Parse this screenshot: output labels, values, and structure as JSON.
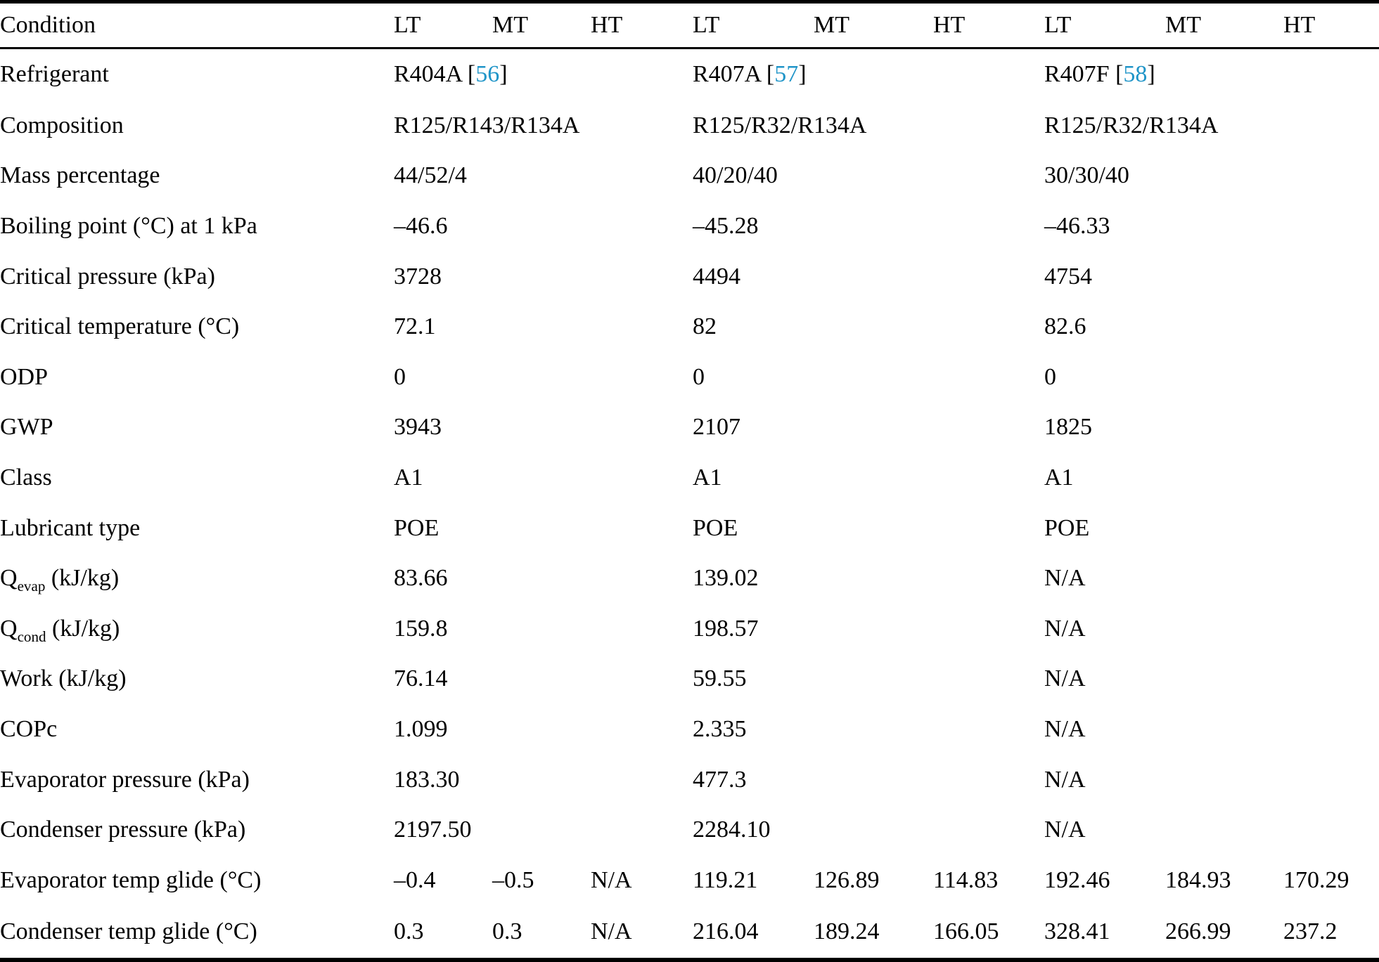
{
  "table": {
    "link_color": "#2095c8",
    "header": {
      "condition_label": "Condition",
      "groups": [
        [
          "LT",
          "MT",
          "HT"
        ],
        [
          "LT",
          "MT",
          "HT"
        ],
        [
          "LT",
          "MT",
          "HT"
        ]
      ]
    },
    "rows": [
      {
        "name": "refrigerant",
        "label": [
          {
            "text": "Refrigerant"
          }
        ],
        "type": "grouped",
        "values": [
          {
            "text": "R404A ",
            "ref": "56"
          },
          {
            "text": "R407A ",
            "ref": "57"
          },
          {
            "text": "R407F ",
            "ref": "58"
          }
        ]
      },
      {
        "name": "composition",
        "label": [
          {
            "text": "Composition"
          }
        ],
        "type": "grouped",
        "values": [
          {
            "text": "R125/R143/R134A"
          },
          {
            "text": "R125/R32/R134A"
          },
          {
            "text": "R125/R32/R134A"
          }
        ]
      },
      {
        "name": "mass-percentage",
        "label": [
          {
            "text": "Mass percentage"
          }
        ],
        "type": "grouped",
        "values": [
          {
            "text": "44/52/4"
          },
          {
            "text": "40/20/40"
          },
          {
            "text": "30/30/40"
          }
        ]
      },
      {
        "name": "boiling-point",
        "label": [
          {
            "text": "Boiling point (°C) at 1 kPa"
          }
        ],
        "type": "grouped",
        "values": [
          {
            "text": "–46.6"
          },
          {
            "text": "–45.28"
          },
          {
            "text": "–46.33"
          }
        ]
      },
      {
        "name": "critical-pressure",
        "label": [
          {
            "text": "Critical pressure (kPa)"
          }
        ],
        "type": "grouped",
        "values": [
          {
            "text": "3728"
          },
          {
            "text": "4494"
          },
          {
            "text": "4754"
          }
        ]
      },
      {
        "name": "critical-temperature",
        "label": [
          {
            "text": "Critical temperature (°C)"
          }
        ],
        "type": "grouped",
        "values": [
          {
            "text": "72.1"
          },
          {
            "text": "82"
          },
          {
            "text": "82.6"
          }
        ]
      },
      {
        "name": "odp",
        "label": [
          {
            "text": "ODP"
          }
        ],
        "type": "grouped",
        "values": [
          {
            "text": "0"
          },
          {
            "text": "0"
          },
          {
            "text": "0"
          }
        ]
      },
      {
        "name": "gwp",
        "label": [
          {
            "text": "GWP"
          }
        ],
        "type": "grouped",
        "values": [
          {
            "text": "3943"
          },
          {
            "text": "2107"
          },
          {
            "text": "1825"
          }
        ]
      },
      {
        "name": "class",
        "label": [
          {
            "text": "Class"
          }
        ],
        "type": "grouped",
        "values": [
          {
            "text": "A1"
          },
          {
            "text": "A1"
          },
          {
            "text": "A1"
          }
        ]
      },
      {
        "name": "lubricant-type",
        "label": [
          {
            "text": "Lubricant type"
          }
        ],
        "type": "grouped",
        "values": [
          {
            "text": "POE"
          },
          {
            "text": "POE"
          },
          {
            "text": "POE"
          }
        ]
      },
      {
        "name": "q-evap",
        "label": [
          {
            "text": "Q"
          },
          {
            "text": "evap",
            "sub": true
          },
          {
            "text": " (kJ/kg)"
          }
        ],
        "type": "grouped",
        "values": [
          {
            "text": "83.66"
          },
          {
            "text": "139.02"
          },
          {
            "text": "N/A"
          }
        ]
      },
      {
        "name": "q-cond",
        "label": [
          {
            "text": "Q"
          },
          {
            "text": "cond",
            "sub": true
          },
          {
            "text": " (kJ/kg)"
          }
        ],
        "type": "grouped",
        "values": [
          {
            "text": "159.8"
          },
          {
            "text": "198.57"
          },
          {
            "text": "N/A"
          }
        ]
      },
      {
        "name": "work",
        "label": [
          {
            "text": "Work (kJ/kg)"
          }
        ],
        "type": "grouped",
        "values": [
          {
            "text": "76.14"
          },
          {
            "text": "59.55"
          },
          {
            "text": "N/A"
          }
        ]
      },
      {
        "name": "copc",
        "label": [
          {
            "text": "COPc"
          }
        ],
        "type": "grouped",
        "values": [
          {
            "text": "1.099"
          },
          {
            "text": "2.335"
          },
          {
            "text": "N/A"
          }
        ]
      },
      {
        "name": "evaporator-pressure",
        "label": [
          {
            "text": "Evaporator pressure (kPa)"
          }
        ],
        "type": "grouped",
        "values": [
          {
            "text": "183.30"
          },
          {
            "text": "477.3"
          },
          {
            "text": "N/A"
          }
        ]
      },
      {
        "name": "condenser-pressure",
        "label": [
          {
            "text": "Condenser pressure (kPa)"
          }
        ],
        "type": "grouped",
        "values": [
          {
            "text": "2197.50"
          },
          {
            "text": "2284.10"
          },
          {
            "text": "N/A"
          }
        ]
      },
      {
        "name": "evaporator-temp-glide",
        "label": [
          {
            "text": "Evaporator temp glide (°C)"
          }
        ],
        "type": "per-condition",
        "values": [
          {
            "text": "–0.4"
          },
          {
            "text": "–0.5"
          },
          {
            "text": "N/A"
          },
          {
            "text": "119.21"
          },
          {
            "text": "126.89"
          },
          {
            "text": "114.83"
          },
          {
            "text": "192.46"
          },
          {
            "text": "184.93"
          },
          {
            "text": "170.29"
          }
        ]
      },
      {
        "name": "condenser-temp-glide",
        "label": [
          {
            "text": "Condenser temp glide (°C)"
          }
        ],
        "type": "per-condition",
        "values": [
          {
            "text": "0.3"
          },
          {
            "text": "0.3"
          },
          {
            "text": "N/A"
          },
          {
            "text": "216.04"
          },
          {
            "text": "189.24"
          },
          {
            "text": "166.05"
          },
          {
            "text": "328.41"
          },
          {
            "text": "266.99"
          },
          {
            "text": "237.2"
          }
        ]
      }
    ]
  }
}
